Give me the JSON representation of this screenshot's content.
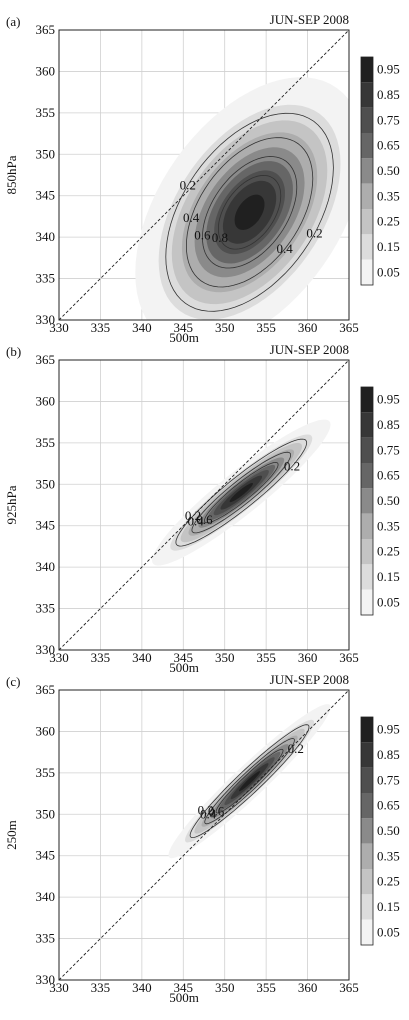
{
  "chart_data": [
    {
      "type": "heatmap",
      "panel_label": "(a)",
      "title": "JUN-SEP 2008",
      "xlabel": "500m",
      "ylabel": "850hPa",
      "xlim": [
        330,
        365
      ],
      "ylim": [
        330,
        365
      ],
      "x_ticks": [
        330,
        335,
        340,
        345,
        350,
        355,
        360,
        365
      ],
      "y_ticks": [
        330,
        335,
        340,
        345,
        350,
        355,
        360,
        365
      ],
      "grid": true,
      "diagonal_reference_line": "dashed 1:1",
      "colorbar_levels": [
        0.05,
        0.15,
        0.25,
        0.35,
        0.5,
        0.65,
        0.75,
        0.85,
        0.95
      ],
      "colorbar_labels": [
        "0.95",
        "0.85",
        "0.75",
        "0.65",
        "0.50",
        "0.35",
        "0.25",
        "0.15",
        "0.05"
      ],
      "peak": {
        "x": 353,
        "y": 343,
        "value": 0.95
      },
      "contours": [
        {
          "level": 0.2,
          "label": "0.2",
          "label_count": 2
        },
        {
          "level": 0.4,
          "label": "0.4",
          "label_count": 2
        },
        {
          "level": 0.6,
          "label": "0.6",
          "label_count": 1
        },
        {
          "level": 0.8,
          "label": "0.8",
          "label_count": 1
        }
      ]
    },
    {
      "type": "heatmap",
      "panel_label": "(b)",
      "title": "JUN-SEP 2008",
      "xlabel": "500m",
      "ylabel": "925hPa",
      "xlim": [
        330,
        365
      ],
      "ylim": [
        330,
        365
      ],
      "x_ticks": [
        330,
        335,
        340,
        345,
        350,
        355,
        360,
        365
      ],
      "y_ticks": [
        330,
        335,
        340,
        345,
        350,
        355,
        360,
        365
      ],
      "grid": true,
      "diagonal_reference_line": "dashed 1:1",
      "colorbar_levels": [
        0.05,
        0.15,
        0.25,
        0.35,
        0.5,
        0.65,
        0.75,
        0.85,
        0.95
      ],
      "colorbar_labels": [
        "0.95",
        "0.85",
        "0.75",
        "0.65",
        "0.50",
        "0.35",
        "0.25",
        "0.15",
        "0.05"
      ],
      "peak": {
        "x": 352,
        "y": 349,
        "value": 0.95
      },
      "contours": [
        {
          "level": 0.2,
          "label": "0.2",
          "label_count": 2
        },
        {
          "level": 0.4,
          "label": "0.4",
          "label_count": 1
        },
        {
          "level": 0.6,
          "label": "0.6",
          "label_count": 1
        }
      ]
    },
    {
      "type": "heatmap",
      "panel_label": "(c)",
      "title": "JUN-SEP 2008",
      "xlabel": "500m",
      "ylabel": "250m",
      "xlim": [
        330,
        365
      ],
      "ylim": [
        330,
        365
      ],
      "x_ticks": [
        330,
        335,
        340,
        345,
        350,
        355,
        360,
        365
      ],
      "y_ticks": [
        330,
        335,
        340,
        345,
        350,
        355,
        360,
        365
      ],
      "grid": true,
      "diagonal_reference_line": "dashed 1:1",
      "colorbar_levels": [
        0.05,
        0.15,
        0.25,
        0.35,
        0.5,
        0.65,
        0.75,
        0.85,
        0.95
      ],
      "colorbar_labels": [
        "0.95",
        "0.85",
        "0.75",
        "0.65",
        "0.50",
        "0.35",
        "0.25",
        "0.15",
        "0.05"
      ],
      "peak": {
        "x": 353,
        "y": 354,
        "value": 0.95
      },
      "contours": [
        {
          "level": 0.2,
          "label": "0.2",
          "label_count": 2
        },
        {
          "level": 0.4,
          "label": "0.4",
          "label_count": 1
        },
        {
          "level": 0.6,
          "label": "0.6",
          "label_count": 1
        }
      ]
    }
  ]
}
